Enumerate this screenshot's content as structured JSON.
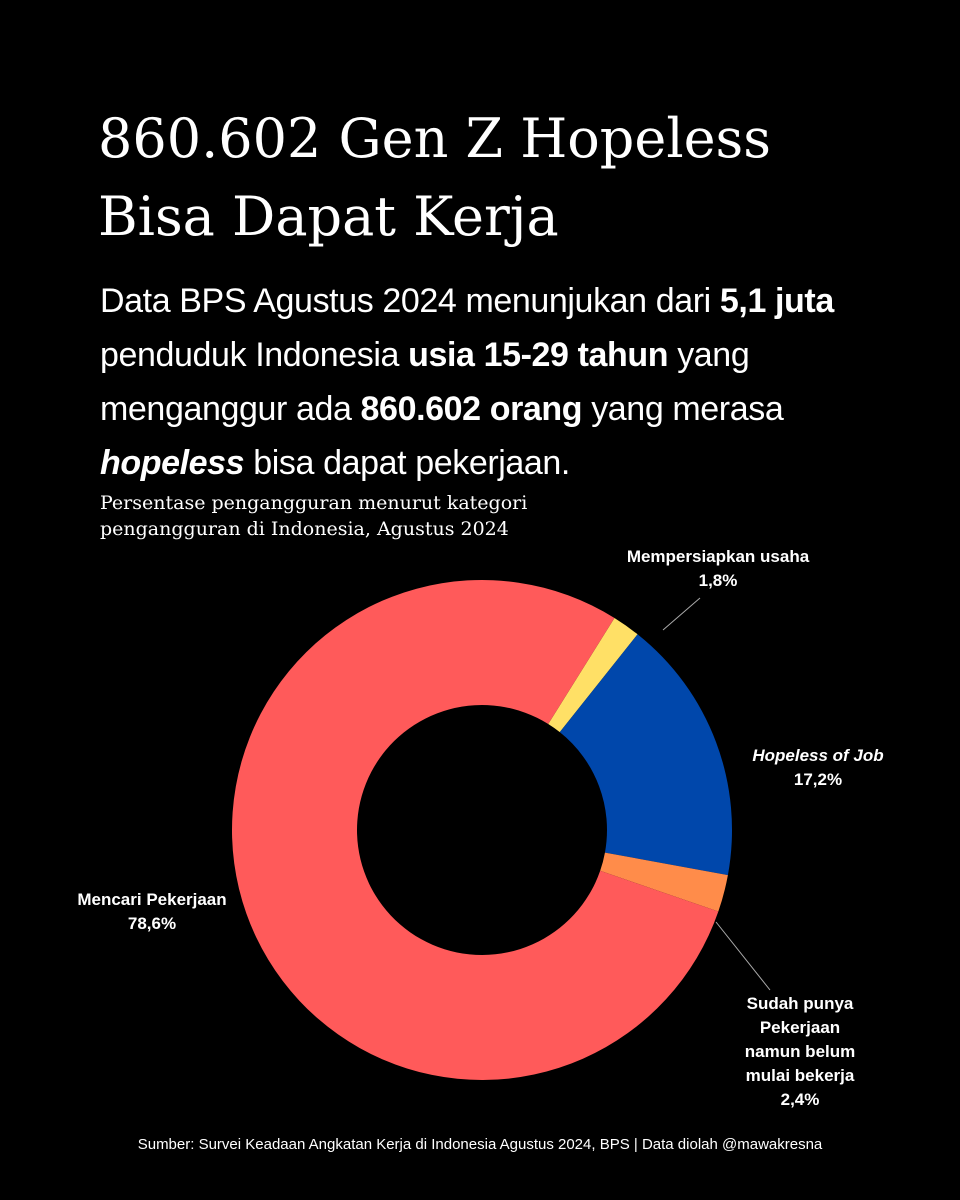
{
  "headline": {
    "line1": "860.602 Gen Z Hopeless",
    "line2": "Bisa Dapat Kerja"
  },
  "intro": {
    "part1": "Data BPS Agustus 2024 menunjukan dari ",
    "bold1": "5,1 juta",
    "part2": " penduduk Indonesia ",
    "bold2": "usia 15-29 tahun",
    "part3": " yang menganggur ada ",
    "bold3": "860.602 orang",
    "part4": " yang merasa ",
    "bold_italic": "hopeless",
    "part5": " bisa dapat pekerjaan."
  },
  "chart_data": {
    "type": "pie",
    "title_line1": "Persentase pengangguran menurut kategori",
    "title_line2": "pengangguran di Indonesia, Agustus 2024",
    "slices": [
      {
        "key": "mempersiapkan",
        "label": "Mempersiapkan usaha",
        "value": 1.8,
        "value_label": "1,8%",
        "color": "#FFE066"
      },
      {
        "key": "hopeless",
        "label": "Hopeless of Job",
        "value": 17.2,
        "value_label": "17,2%",
        "color": "#0047AB"
      },
      {
        "key": "sudah",
        "label_lines": [
          "Sudah punya",
          "Pekerjaan",
          "namun belum",
          "mulai bekerja"
        ],
        "value": 2.4,
        "value_label": "2,4%",
        "color": "#FF8C4A"
      },
      {
        "key": "mencari",
        "label": "Mencari Pekerjaan",
        "value": 78.6,
        "value_label": "78,6%",
        "color": "#FF5A5A"
      }
    ],
    "inner_hole": "donut",
    "start_angle_deg": 32
  },
  "footer": "Sumber: Survei Keadaan Angkatan Kerja di Indonesia Agustus 2024, BPS | Data diolah @mawakresna",
  "colors": {
    "background": "#000000",
    "text": "#FFFFFF",
    "leader_line": "#AAAAAA"
  }
}
